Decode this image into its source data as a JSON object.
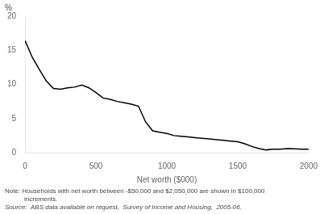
{
  "chart_data": {
    "type": "line",
    "xlabel": "Net worth ($000)",
    "ylabel": "%",
    "note": [
      "Note: Households with net worth between -$50,000 and $2,050,000 are shown in $100,000",
      "increments."
    ],
    "source": "Source:  ABS data available on request,  Survey of Income and Housing,  2005-06.",
    "x": [
      0,
      50,
      100,
      150,
      200,
      250,
      300,
      350,
      400,
      450,
      500,
      550,
      600,
      650,
      700,
      750,
      800,
      850,
      900,
      950,
      1000,
      1050,
      1100,
      1150,
      1200,
      1250,
      1300,
      1350,
      1400,
      1450,
      1500,
      1550,
      1600,
      1650,
      1700,
      1750,
      1800,
      1850,
      1900,
      1950,
      2000
    ],
    "values": [
      16.4,
      14.0,
      12.2,
      10.5,
      9.4,
      9.3,
      9.5,
      9.6,
      9.9,
      9.5,
      8.8,
      8.0,
      7.8,
      7.5,
      7.3,
      7.1,
      6.8,
      4.5,
      3.2,
      3.0,
      2.8,
      2.5,
      2.4,
      2.3,
      2.2,
      2.1,
      2.0,
      1.9,
      1.8,
      1.7,
      1.6,
      1.3,
      0.9,
      0.6,
      0.4,
      0.5,
      0.5,
      0.6,
      0.55,
      0.5,
      0.5
    ],
    "color": "#000000",
    "xlim": [
      0,
      2000
    ],
    "xticks": [
      0,
      500,
      1000,
      1500,
      2000
    ],
    "ylim": [
      0,
      20
    ],
    "yticks": [
      0,
      5,
      10,
      15,
      20
    ],
    "grid": false
  }
}
